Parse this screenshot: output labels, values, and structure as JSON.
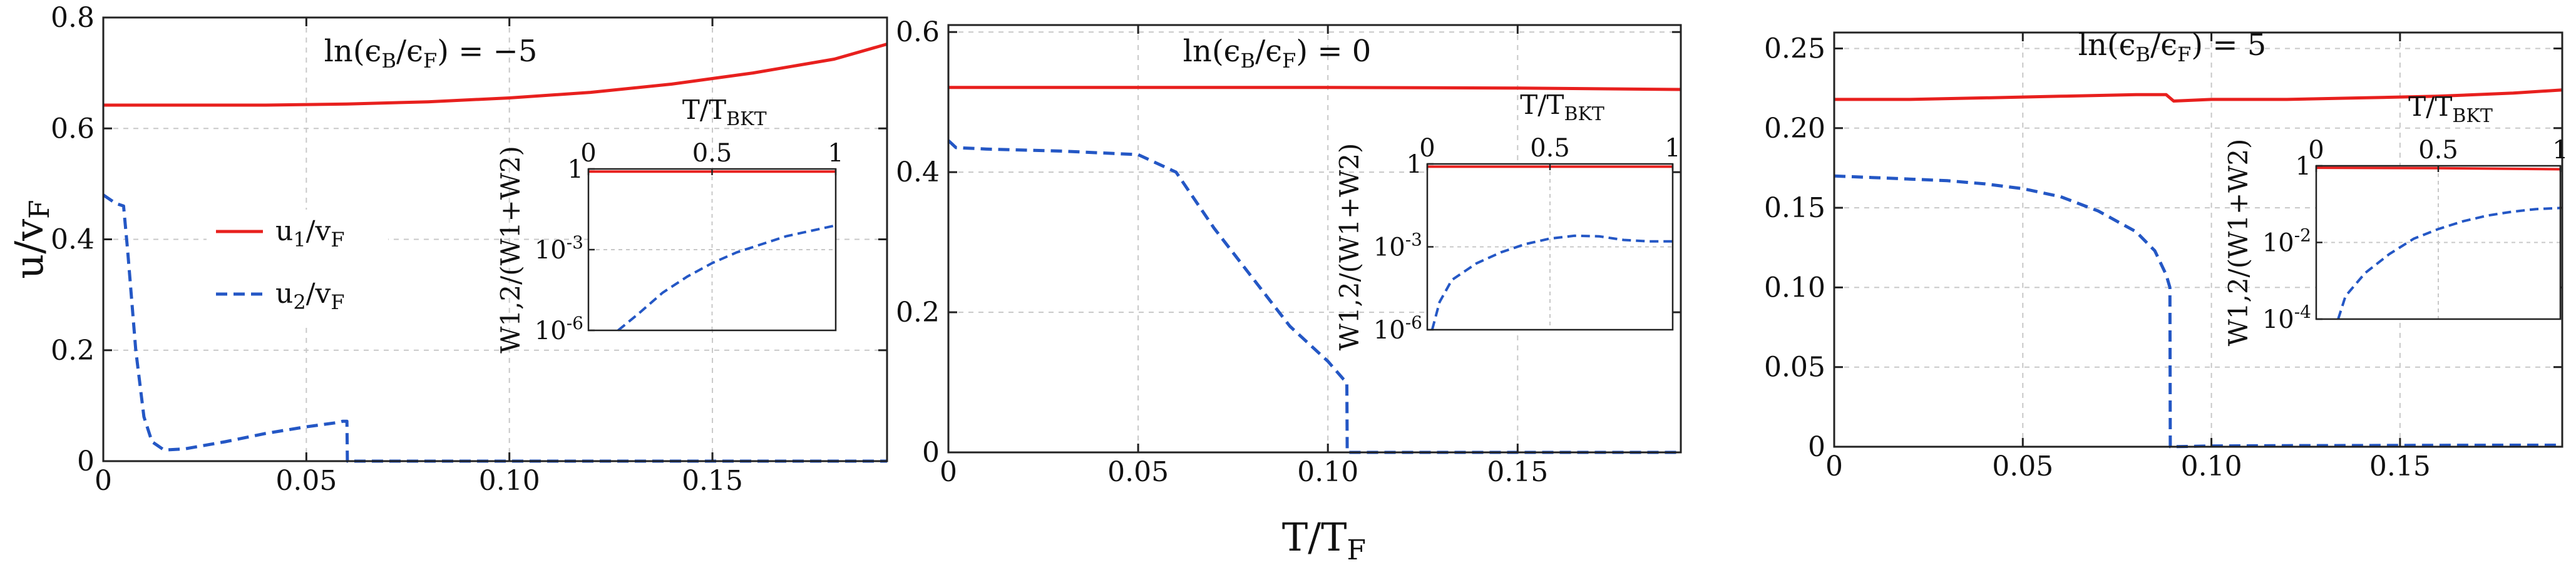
{
  "figure": {
    "shared_xlabel": "T/T",
    "shared_xlabel_sub": "F"
  },
  "legend": {
    "u1": {
      "main": "u",
      "sub1": "1",
      "mid": "/v",
      "sub2": "F"
    },
    "u2": {
      "main": "u",
      "sub1": "2",
      "mid": "/v",
      "sub2": "F"
    }
  },
  "colors": {
    "u1": "#e8201e",
    "u2": "#2457c5",
    "grid": "#c8c8c8",
    "axis": "#222222"
  },
  "chart_data": [
    {
      "type": "line",
      "title": "ln(ϵB/ϵF) = −5",
      "title_parts": [
        "ln(ϵ",
        "B",
        "/ϵ",
        "F",
        ") = −5"
      ],
      "xlabel": "T/T_F",
      "ylabel": "u/v_F",
      "ylabel_parts": [
        "u/v",
        "F"
      ],
      "xlim": [
        0,
        0.193
      ],
      "ylim": [
        0,
        0.8
      ],
      "xticks": [
        0,
        0.05,
        0.1,
        0.15
      ],
      "xtick_labels": [
        "0",
        "0.05",
        "0.10",
        "0.15"
      ],
      "yticks": [
        0,
        0.2,
        0.4,
        0.6,
        0.8
      ],
      "ytick_labels": [
        "0",
        "0.2",
        "0.4",
        "0.6",
        "0.8"
      ],
      "series": [
        {
          "name": "u1/vF",
          "style": "solid",
          "x": [
            0,
            0.02,
            0.04,
            0.06,
            0.08,
            0.1,
            0.12,
            0.14,
            0.16,
            0.18,
            0.193
          ],
          "values": [
            0.642,
            0.642,
            0.642,
            0.644,
            0.648,
            0.655,
            0.665,
            0.68,
            0.7,
            0.725,
            0.752
          ]
        },
        {
          "name": "u2/vF",
          "style": "dashed",
          "x": [
            0,
            0.003,
            0.005,
            0.006,
            0.008,
            0.01,
            0.012,
            0.015,
            0.02,
            0.03,
            0.04,
            0.05,
            0.058,
            0.059,
            0.06,
            0.0601,
            0.08,
            0.1,
            0.12,
            0.14,
            0.16,
            0.18,
            0.193
          ],
          "values": [
            0.48,
            0.465,
            0.46,
            0.38,
            0.2,
            0.08,
            0.035,
            0.02,
            0.022,
            0.035,
            0.05,
            0.062,
            0.07,
            0.072,
            0.072,
            0.0,
            0.0,
            0.0,
            0.0,
            0.0,
            0.0,
            0.0,
            0.0
          ]
        }
      ],
      "inset": {
        "xlabel_parts": [
          "T/T",
          "BKT"
        ],
        "ylabel": "W1,2/(W1+W2)",
        "xlim": [
          0,
          1
        ],
        "xticks": [
          0,
          0.5,
          1
        ],
        "xtick_labels": [
          "0",
          "0.5",
          "1"
        ],
        "yscale": "log",
        "ylim_log10": [
          -6,
          0
        ],
        "yticks_log10": [
          -6,
          -3,
          0
        ],
        "ytick_labels": [
          [
            "10",
            "-6"
          ],
          [
            "10",
            "-3"
          ],
          [
            "1",
            ""
          ]
        ],
        "series": [
          {
            "name": "W1",
            "style": "solid",
            "x": [
              0,
              1
            ],
            "log10": [
              -0.1,
              -0.1
            ]
          },
          {
            "name": "W2",
            "style": "dashed",
            "x": [
              0.12,
              0.2,
              0.3,
              0.4,
              0.5,
              0.6,
              0.7,
              0.8,
              0.9,
              1.0
            ],
            "log10": [
              -6.0,
              -5.4,
              -4.6,
              -4.0,
              -3.5,
              -3.1,
              -2.8,
              -2.5,
              -2.3,
              -2.1
            ]
          }
        ]
      }
    },
    {
      "type": "line",
      "title": "ln(ϵB/ϵF) = 0",
      "title_parts": [
        "ln(ϵ",
        "B",
        "/ϵ",
        "F",
        ") = 0"
      ],
      "xlabel": "T/T_F",
      "xlim": [
        0,
        0.193
      ],
      "ylim": [
        0,
        0.61
      ],
      "xticks": [
        0,
        0.05,
        0.1,
        0.15
      ],
      "xtick_labels": [
        "0",
        "0.05",
        "0.10",
        "0.15"
      ],
      "yticks": [
        0,
        0.2,
        0.4,
        0.6
      ],
      "ytick_labels": [
        "0",
        "0.2",
        "0.4",
        "0.6"
      ],
      "series": [
        {
          "name": "u1/vF",
          "style": "solid",
          "x": [
            0,
            0.05,
            0.1,
            0.15,
            0.193
          ],
          "values": [
            0.521,
            0.521,
            0.521,
            0.52,
            0.518
          ]
        },
        {
          "name": "u2/vF",
          "style": "dashed",
          "x": [
            0,
            0.002,
            0.01,
            0.03,
            0.05,
            0.06,
            0.07,
            0.08,
            0.09,
            0.1,
            0.104,
            0.105,
            0.1051,
            0.12,
            0.14,
            0.16,
            0.18,
            0.193
          ],
          "values": [
            0.445,
            0.435,
            0.433,
            0.43,
            0.425,
            0.4,
            0.32,
            0.25,
            0.18,
            0.13,
            0.105,
            0.1,
            0.0,
            0.0,
            0.0,
            0.0,
            0.0,
            0.0
          ]
        }
      ],
      "inset": {
        "xlabel_parts": [
          "T/T",
          "BKT"
        ],
        "ylabel": "W1,2/(W1+W2)",
        "xlim": [
          0,
          1
        ],
        "xticks": [
          0,
          0.5,
          1
        ],
        "xtick_labels": [
          "0",
          "0.5",
          "1"
        ],
        "yscale": "log",
        "ylim_log10": [
          -6,
          0
        ],
        "yticks_log10": [
          -6,
          -3,
          0
        ],
        "ytick_labels": [
          [
            "10",
            "-6"
          ],
          [
            "10",
            "-3"
          ],
          [
            "1",
            ""
          ]
        ],
        "series": [
          {
            "name": "W1",
            "style": "solid",
            "x": [
              0,
              1
            ],
            "log10": [
              -0.1,
              -0.1
            ]
          },
          {
            "name": "W2",
            "style": "dashed",
            "x": [
              0.02,
              0.05,
              0.1,
              0.2,
              0.3,
              0.4,
              0.5,
              0.6,
              0.7,
              0.8,
              0.9,
              1.0
            ],
            "log10": [
              -6.0,
              -5.0,
              -4.2,
              -3.6,
              -3.2,
              -2.9,
              -2.7,
              -2.6,
              -2.62,
              -2.75,
              -2.8,
              -2.8
            ]
          }
        ]
      }
    },
    {
      "type": "line",
      "title": "ln(ϵB/ϵF) = 5",
      "title_parts": [
        "ln(ϵ",
        "B",
        "/ϵ",
        "F",
        ") = 5"
      ],
      "xlabel": "T/T_F",
      "xlim": [
        0,
        0.193
      ],
      "ylim": [
        0,
        0.26
      ],
      "xticks": [
        0,
        0.05,
        0.1,
        0.15
      ],
      "xtick_labels": [
        "0",
        "0.05",
        "0.10",
        "0.15"
      ],
      "yticks": [
        0,
        0.05,
        0.1,
        0.15,
        0.2,
        0.25
      ],
      "ytick_labels": [
        "0",
        "0.05",
        "0.10",
        "0.15",
        "0.20",
        "0.25"
      ],
      "series": [
        {
          "name": "u1/vF",
          "style": "solid",
          "x": [
            0,
            0.02,
            0.04,
            0.06,
            0.08,
            0.088,
            0.089,
            0.09,
            0.1,
            0.12,
            0.14,
            0.16,
            0.18,
            0.193
          ],
          "values": [
            0.218,
            0.218,
            0.219,
            0.22,
            0.221,
            0.221,
            0.219,
            0.217,
            0.218,
            0.218,
            0.219,
            0.22,
            0.222,
            0.224
          ]
        },
        {
          "name": "u2/vF",
          "style": "dashed",
          "x": [
            0,
            0.01,
            0.02,
            0.03,
            0.04,
            0.05,
            0.06,
            0.07,
            0.08,
            0.085,
            0.088,
            0.089,
            0.0891,
            0.1,
            0.12,
            0.14,
            0.16,
            0.18,
            0.193
          ],
          "values": [
            0.17,
            0.169,
            0.168,
            0.167,
            0.165,
            0.162,
            0.157,
            0.148,
            0.135,
            0.123,
            0.108,
            0.1,
            0.0,
            0.0005,
            0.0007,
            0.0008,
            0.0009,
            0.001,
            0.001
          ]
        }
      ],
      "inset": {
        "xlabel_parts": [
          "T/T",
          "BKT"
        ],
        "ylabel": "W1,2/(W1+W2)",
        "xlim": [
          0,
          1
        ],
        "xticks": [
          0,
          0.5,
          1
        ],
        "xtick_labels": [
          "0",
          "0.5",
          "1"
        ],
        "yscale": "log",
        "ylim_log10": [
          -4,
          0
        ],
        "yticks_log10": [
          -4,
          -2,
          0
        ],
        "ytick_labels": [
          [
            "10",
            "-4"
          ],
          [
            "10",
            "-2"
          ],
          [
            "1",
            ""
          ]
        ],
        "series": [
          {
            "name": "W1",
            "style": "solid",
            "x": [
              0,
              0.5,
              1
            ],
            "log10": [
              -0.05,
              -0.06,
              -0.09
            ]
          },
          {
            "name": "W2",
            "style": "dashed",
            "x": [
              0.09,
              0.12,
              0.2,
              0.3,
              0.4,
              0.5,
              0.6,
              0.7,
              0.8,
              0.9,
              1.0
            ],
            "log10": [
              -4.0,
              -3.4,
              -2.8,
              -2.3,
              -1.9,
              -1.65,
              -1.45,
              -1.3,
              -1.2,
              -1.13,
              -1.1
            ]
          }
        ]
      }
    }
  ]
}
